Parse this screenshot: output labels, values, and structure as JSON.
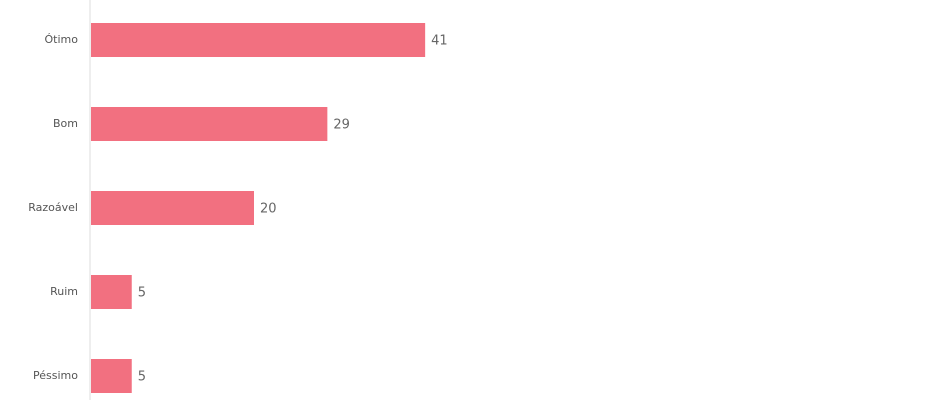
{
  "chart_data": {
    "type": "bar",
    "orientation": "horizontal",
    "categories": [
      "Ótimo",
      "Bom",
      "Razoável",
      "Ruim",
      "Péssimo"
    ],
    "values": [
      41,
      29,
      20,
      5,
      5
    ],
    "data_labels": [
      "41",
      "29",
      "20",
      "5",
      "5"
    ],
    "xlim": [
      0,
      100
    ],
    "grid": false,
    "legend": "none",
    "bar_color": "#f27080",
    "axis_color": "#dcdcdc"
  }
}
